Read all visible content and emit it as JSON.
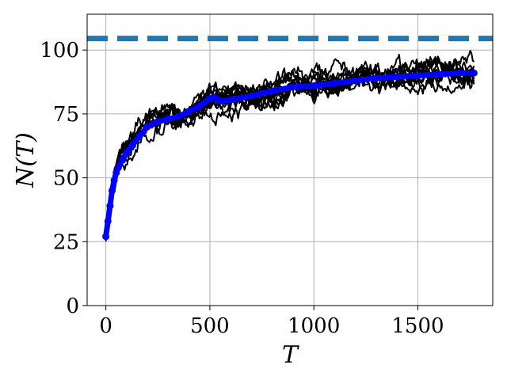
{
  "chart_data": {
    "type": "line",
    "title": "",
    "xlabel": "T",
    "ylabel": "N(T)",
    "xlim": [
      -90,
      1860
    ],
    "ylim": [
      0,
      114
    ],
    "x_ticks": [
      0,
      500,
      1000,
      1500
    ],
    "y_ticks": [
      0,
      25,
      50,
      75,
      100
    ],
    "grid": true,
    "legend": "none",
    "reference_line": {
      "y": 104.5,
      "style": "dashed",
      "color": "#1f77b4"
    },
    "mean_series": {
      "color": "#0000ff",
      "x": [
        0,
        10,
        20,
        30,
        40,
        50,
        60,
        80,
        100,
        130,
        160,
        200,
        250,
        300,
        350,
        400,
        450,
        500,
        520,
        540,
        560,
        600,
        700,
        800,
        900,
        1000,
        1100,
        1200,
        1300,
        1400,
        1500,
        1600,
        1700,
        1770
      ],
      "y": [
        27,
        33,
        39,
        45,
        49,
        52,
        54,
        57,
        60,
        63,
        66,
        70,
        72,
        73,
        74,
        76,
        78,
        81,
        81.5,
        80.5,
        80,
        80.5,
        82,
        84,
        85.5,
        86,
        87,
        88,
        89,
        89.5,
        90,
        90.5,
        91,
        91
      ]
    },
    "sample_series": {
      "color": "#000000",
      "count": 10,
      "spread": 4.5
    }
  }
}
